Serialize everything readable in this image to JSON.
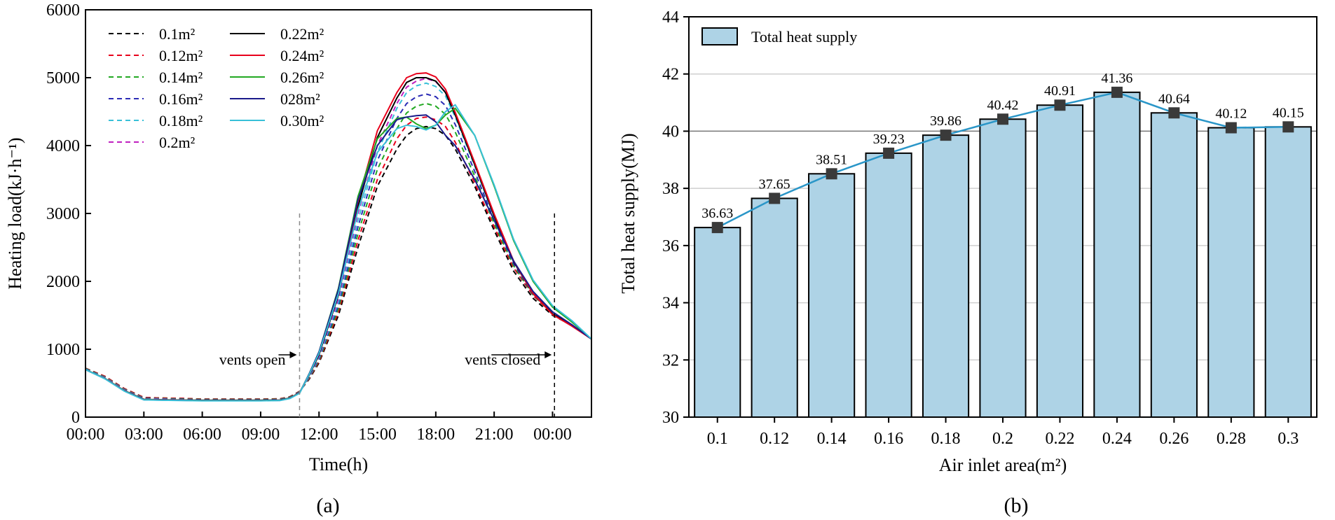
{
  "chart_data": [
    {
      "type": "line",
      "panel_label": "(a)",
      "xlabel": "Time(h)",
      "ylabel": "Heating load(kJ·h⁻¹)",
      "x_ticks": [
        "00:00",
        "03:00",
        "06:00",
        "09:00",
        "12:00",
        "15:00",
        "18:00",
        "21:00",
        "00:00"
      ],
      "xlim_hours": [
        0,
        26
      ],
      "ylim": [
        0,
        6000
      ],
      "y_ticks": [
        0,
        1000,
        2000,
        3000,
        4000,
        5000,
        6000
      ],
      "legend_placement": "top-left",
      "annotations": [
        {
          "text": "vents open",
          "hour": 11
        },
        {
          "text": "vents closed",
          "hour": 24.1
        }
      ],
      "x": [
        0,
        1,
        2,
        3,
        4,
        5,
        6,
        7,
        8,
        9,
        10,
        10.5,
        11,
        11.5,
        12,
        13,
        14,
        15,
        16,
        16.5,
        17,
        17.5,
        18,
        18.5,
        19,
        20,
        21,
        22,
        23,
        24,
        25,
        26
      ],
      "series": [
        {
          "name": "0.1m²",
          "color": "#000000",
          "dash": "dashed",
          "values": [
            720,
            600,
            420,
            290,
            280,
            275,
            265,
            265,
            265,
            265,
            270,
            300,
            380,
            560,
            800,
            1500,
            2500,
            3400,
            3950,
            4150,
            4250,
            4280,
            4250,
            4150,
            3950,
            3400,
            2750,
            2150,
            1750,
            1500,
            1350,
            1150
          ]
        },
        {
          "name": "0.12m²",
          "color": "#e8001c",
          "dash": "dashed",
          "values": [
            720,
            600,
            420,
            290,
            280,
            275,
            265,
            265,
            265,
            265,
            270,
            300,
            380,
            570,
            820,
            1550,
            2600,
            3500,
            4100,
            4300,
            4400,
            4420,
            4380,
            4280,
            4050,
            3450,
            2800,
            2200,
            1790,
            1520,
            1360,
            1150
          ]
        },
        {
          "name": "0.14m²",
          "color": "#22a822",
          "dash": "dashed",
          "values": [
            715,
            590,
            410,
            280,
            272,
            268,
            260,
            260,
            260,
            260,
            265,
            295,
            375,
            580,
            840,
            1600,
            2700,
            3650,
            4250,
            4480,
            4580,
            4620,
            4580,
            4460,
            4200,
            3550,
            2850,
            2230,
            1800,
            1520,
            1360,
            1150
          ]
        },
        {
          "name": "0.16m²",
          "color": "#2b2bb5",
          "dash": "dashed",
          "values": [
            710,
            585,
            405,
            275,
            268,
            263,
            255,
            255,
            255,
            255,
            260,
            290,
            370,
            590,
            860,
            1650,
            2800,
            3780,
            4400,
            4620,
            4720,
            4760,
            4720,
            4590,
            4310,
            3620,
            2900,
            2260,
            1810,
            1520,
            1360,
            1150
          ]
        },
        {
          "name": "0.18m²",
          "color": "#38c0d8",
          "dash": "dashed",
          "values": [
            705,
            580,
            400,
            270,
            264,
            258,
            252,
            252,
            252,
            252,
            256,
            286,
            365,
            600,
            880,
            1700,
            2900,
            3900,
            4550,
            4780,
            4880,
            4920,
            4870,
            4730,
            4420,
            3700,
            2950,
            2290,
            1820,
            1520,
            1360,
            1150
          ]
        },
        {
          "name": "0.2m²",
          "color": "#c020c0",
          "dash": "dashed",
          "values": [
            700,
            575,
            395,
            265,
            260,
            255,
            250,
            250,
            250,
            250,
            254,
            284,
            362,
            610,
            900,
            1750,
            3000,
            4000,
            4620,
            4860,
            4950,
            4990,
            4940,
            4790,
            4470,
            3740,
            2980,
            2300,
            1830,
            1520,
            1360,
            1150
          ]
        },
        {
          "name": "0.22m²",
          "color": "#000000",
          "dash": "solid",
          "values": [
            700,
            570,
            390,
            262,
            256,
            252,
            248,
            248,
            248,
            248,
            252,
            282,
            360,
            620,
            920,
            1800,
            3100,
            4120,
            4700,
            4930,
            5000,
            5000,
            4950,
            4780,
            4450,
            3720,
            2960,
            2290,
            1820,
            1520,
            1350,
            1150
          ]
        },
        {
          "name": "0.24m²",
          "color": "#e8001c",
          "dash": "solid",
          "values": [
            700,
            570,
            388,
            260,
            254,
            250,
            246,
            246,
            246,
            246,
            250,
            280,
            358,
            630,
            940,
            1850,
            3180,
            4220,
            4780,
            5000,
            5060,
            5070,
            5010,
            4830,
            4490,
            3750,
            2990,
            2300,
            1820,
            1510,
            1340,
            1150
          ]
        },
        {
          "name": "0.26m²",
          "color": "#22a822",
          "dash": "solid",
          "values": [
            700,
            568,
            386,
            258,
            252,
            248,
            244,
            244,
            244,
            244,
            248,
            278,
            356,
            640,
            960,
            1900,
            3250,
            4100,
            4400,
            4420,
            4320,
            4250,
            4300,
            4450,
            4550,
            4150,
            3400,
            2600,
            2000,
            1620,
            1400,
            1150
          ]
        },
        {
          "name": "028m²",
          "color": "#1a1a8a",
          "dash": "solid",
          "values": [
            700,
            566,
            384,
            256,
            250,
            246,
            242,
            242,
            242,
            242,
            246,
            276,
            354,
            640,
            960,
            1880,
            3200,
            4000,
            4380,
            4420,
            4440,
            4450,
            4350,
            4150,
            4000,
            3500,
            2900,
            2300,
            1850,
            1550,
            1360,
            1150
          ]
        },
        {
          "name": "0.30m²",
          "color": "#38c0d8",
          "dash": "solid",
          "values": [
            700,
            564,
            382,
            254,
            248,
            244,
            240,
            240,
            240,
            240,
            244,
            274,
            352,
            630,
            940,
            1820,
            3050,
            3900,
            4250,
            4300,
            4280,
            4230,
            4300,
            4500,
            4600,
            4150,
            3420,
            2620,
            2020,
            1640,
            1420,
            1150
          ]
        }
      ]
    },
    {
      "type": "bar",
      "panel_label": "(b)",
      "xlabel": "Air inlet area(m²)",
      "ylabel": "Total heat supply(MJ)",
      "legend": "Total heat supply",
      "legend_placement": "top-left",
      "ylim": [
        30,
        44
      ],
      "y_ticks": [
        30,
        32,
        34,
        36,
        38,
        40,
        42,
        44
      ],
      "grid": true,
      "categories": [
        "0.1",
        "0.12",
        "0.14",
        "0.16",
        "0.18",
        "0.2",
        "0.22",
        "0.24",
        "0.26",
        "0.28",
        "0.3"
      ],
      "values": [
        36.63,
        37.65,
        38.51,
        39.23,
        39.86,
        40.42,
        40.91,
        41.36,
        40.64,
        40.12,
        40.15
      ],
      "value_labels": [
        "36.63",
        "37.65",
        "38.51",
        "39.23",
        "39.86",
        "40.42",
        "40.91",
        "41.36",
        "40.64",
        "40.12",
        "40.15"
      ],
      "bar_color": "#aed3e6",
      "line_color": "#2a96c8",
      "marker_color": "#3a3a3a"
    }
  ]
}
